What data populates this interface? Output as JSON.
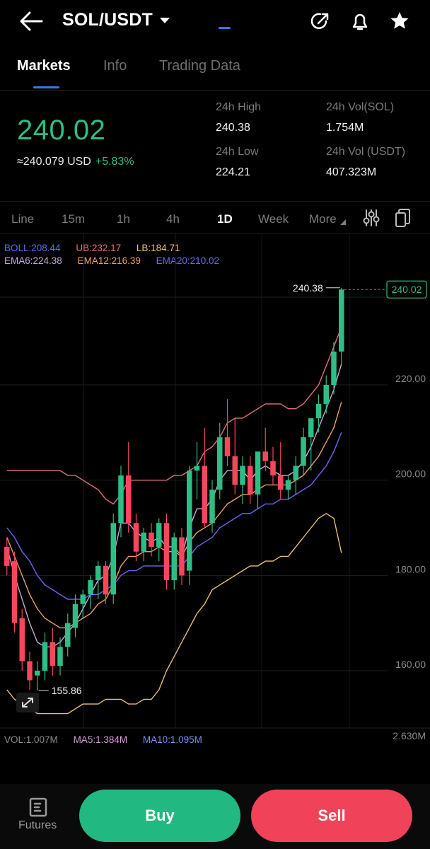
{
  "header": {
    "pair": "SOL/USDT",
    "icons": [
      "arrow-left-icon",
      "chevron-down-icon",
      "share-arrow-icon",
      "bell-icon",
      "star-icon"
    ]
  },
  "tabs": [
    {
      "label": "Markets",
      "active": true
    },
    {
      "label": "Info",
      "active": false
    },
    {
      "label": "Trading Data",
      "active": false
    }
  ],
  "ticker": {
    "last_price": "240.02",
    "usd_equiv": "≈240.079 USD",
    "change_pct": "+5.83%",
    "high_label": "24h High",
    "high_value": "240.38",
    "low_label": "24h Low",
    "low_value": "224.21",
    "vol_sol_label": "24h Vol(SOL)",
    "vol_sol_value": "1.754M",
    "vol_usdt_label": "24h Vol (USDT)",
    "vol_usdt_value": "407.323M"
  },
  "intervals": [
    {
      "label": "Line",
      "active": false
    },
    {
      "label": "15m",
      "active": false
    },
    {
      "label": "1h",
      "active": false
    },
    {
      "label": "4h",
      "active": false
    },
    {
      "label": "1D",
      "active": true
    },
    {
      "label": "Week",
      "active": false
    },
    {
      "label": "More",
      "active": false
    }
  ],
  "indicators": {
    "boll": "BOLL:208.44",
    "ub": "UB:232.17",
    "lb": "LB:184.71",
    "ema6": "EMA6:224.38",
    "ema12": "EMA12:216.39",
    "ema20": "EMA20:210.02"
  },
  "colors": {
    "up": "#2ebd85",
    "down": "#f6465d",
    "boll_mid": "#5b6ee8",
    "boll_upper": "#e0707a",
    "boll_lower": "#e6c070",
    "ema6": "#c9a6d9",
    "ema12": "#e8a060",
    "ema20": "#6c66ee"
  },
  "chart_data": {
    "type": "candlestick",
    "y_ticks": [
      "220.00",
      "200.00",
      "180.00",
      "160.00"
    ],
    "ylim": [
      152,
      250
    ],
    "high_marker": "240.38",
    "low_marker": "155.86",
    "last_price_tag": "240.02",
    "candles": [
      {
        "o": 186,
        "h": 188,
        "l": 180,
        "c": 182
      },
      {
        "o": 183,
        "h": 185,
        "l": 168,
        "c": 170
      },
      {
        "o": 171,
        "h": 173,
        "l": 160,
        "c": 162
      },
      {
        "o": 162,
        "h": 164,
        "l": 156,
        "c": 158
      },
      {
        "o": 159,
        "h": 162,
        "l": 155.86,
        "c": 160
      },
      {
        "o": 160,
        "h": 168,
        "l": 158,
        "c": 166
      },
      {
        "o": 166,
        "h": 169,
        "l": 159,
        "c": 161
      },
      {
        "o": 161,
        "h": 167,
        "l": 159,
        "c": 165
      },
      {
        "o": 165,
        "h": 172,
        "l": 163,
        "c": 170
      },
      {
        "o": 169,
        "h": 176,
        "l": 167,
        "c": 174
      },
      {
        "o": 174,
        "h": 177,
        "l": 171,
        "c": 176
      },
      {
        "o": 176,
        "h": 180,
        "l": 173,
        "c": 179
      },
      {
        "o": 179,
        "h": 183,
        "l": 175,
        "c": 182
      },
      {
        "o": 182,
        "h": 183,
        "l": 174,
        "c": 176
      },
      {
        "o": 176,
        "h": 193,
        "l": 174,
        "c": 191
      },
      {
        "o": 191,
        "h": 203,
        "l": 188,
        "c": 201
      },
      {
        "o": 201,
        "h": 208,
        "l": 189,
        "c": 191
      },
      {
        "o": 191,
        "h": 193,
        "l": 183,
        "c": 185
      },
      {
        "o": 185,
        "h": 190,
        "l": 183,
        "c": 189
      },
      {
        "o": 189,
        "h": 191,
        "l": 184,
        "c": 186
      },
      {
        "o": 186,
        "h": 192,
        "l": 183,
        "c": 191
      },
      {
        "o": 191,
        "h": 193,
        "l": 177,
        "c": 179
      },
      {
        "o": 179,
        "h": 189,
        "l": 177,
        "c": 188
      },
      {
        "o": 188,
        "h": 190,
        "l": 178,
        "c": 180
      },
      {
        "o": 181,
        "h": 203,
        "l": 178,
        "c": 202
      },
      {
        "o": 202,
        "h": 208,
        "l": 196,
        "c": 203
      },
      {
        "o": 203,
        "h": 211,
        "l": 190,
        "c": 191
      },
      {
        "o": 191,
        "h": 200,
        "l": 189,
        "c": 198
      },
      {
        "o": 198,
        "h": 212,
        "l": 196,
        "c": 209
      },
      {
        "o": 209,
        "h": 217,
        "l": 203,
        "c": 205
      },
      {
        "o": 205,
        "h": 213,
        "l": 197,
        "c": 199
      },
      {
        "o": 199,
        "h": 205,
        "l": 195,
        "c": 203
      },
      {
        "o": 203,
        "h": 205,
        "l": 195,
        "c": 197
      },
      {
        "o": 197,
        "h": 206,
        "l": 194,
        "c": 206
      },
      {
        "o": 206,
        "h": 211,
        "l": 202,
        "c": 204
      },
      {
        "o": 204,
        "h": 207,
        "l": 199,
        "c": 201
      },
      {
        "o": 201,
        "h": 208,
        "l": 196,
        "c": 198
      },
      {
        "o": 198,
        "h": 201,
        "l": 196,
        "c": 200
      },
      {
        "o": 200,
        "h": 205,
        "l": 197,
        "c": 203
      },
      {
        "o": 203,
        "h": 211,
        "l": 201,
        "c": 209
      },
      {
        "o": 209,
        "h": 213,
        "l": 202,
        "c": 213
      },
      {
        "o": 213,
        "h": 218,
        "l": 210,
        "c": 216
      },
      {
        "o": 216,
        "h": 222,
        "l": 214,
        "c": 220
      },
      {
        "o": 220,
        "h": 229,
        "l": 218,
        "c": 227
      },
      {
        "o": 227,
        "h": 240.38,
        "l": 224.21,
        "c": 240.02
      }
    ],
    "series": [
      {
        "name": "UB",
        "color": "#e0707a",
        "values": [
          202,
          202,
          202,
          202,
          202,
          202,
          202,
          202,
          201,
          201,
          200,
          199,
          198,
          196,
          195,
          197,
          200,
          200,
          200,
          200,
          200,
          200,
          201,
          201,
          202,
          203,
          206,
          207,
          209,
          212,
          213,
          213,
          214,
          215,
          216,
          216,
          216,
          215,
          215,
          216,
          218,
          220,
          224,
          228,
          232.17
        ]
      },
      {
        "name": "LB",
        "color": "#e6c070",
        "values": [
          156,
          154,
          153,
          152,
          151,
          151,
          151,
          151,
          151,
          152,
          153,
          153,
          153,
          154,
          154,
          154,
          153,
          153,
          154,
          154,
          156,
          160,
          163,
          166,
          169,
          172,
          174,
          177,
          178,
          179,
          180,
          181,
          182,
          182,
          183,
          183,
          184,
          184,
          186,
          188,
          190,
          192,
          193,
          192,
          184.71
        ]
      },
      {
        "name": "EMA6",
        "color": "#c9a6d9",
        "values": [
          186,
          180,
          175,
          170,
          166,
          165,
          165,
          166,
          168,
          170,
          173,
          176,
          179,
          180,
          184,
          191,
          191,
          189,
          188,
          187,
          188,
          186,
          186,
          184,
          190,
          194,
          194,
          196,
          200,
          202,
          202,
          202,
          200,
          202,
          203,
          202,
          201,
          201,
          202,
          204,
          207,
          211,
          215,
          219,
          224.38
        ]
      },
      {
        "name": "EMA12",
        "color": "#e8a060",
        "values": [
          188,
          184,
          180,
          176,
          173,
          171,
          170,
          169,
          169,
          170,
          171,
          172,
          174,
          175,
          178,
          182,
          184,
          184,
          185,
          185,
          186,
          185,
          185,
          184,
          187,
          189,
          190,
          191,
          193,
          195,
          196,
          197,
          197,
          198,
          199,
          199,
          199,
          199,
          200,
          201,
          203,
          205,
          208,
          211,
          216.39
        ]
      },
      {
        "name": "EMA20",
        "color": "#6c66ee",
        "values": [
          190,
          188,
          185,
          183,
          180,
          178,
          177,
          176,
          175,
          175,
          175,
          176,
          176,
          177,
          178,
          180,
          181,
          181,
          182,
          182,
          182,
          182,
          182,
          182,
          184,
          186,
          187,
          188,
          190,
          191,
          192,
          193,
          193,
          194,
          195,
          195,
          196,
          196,
          197,
          198,
          199,
          201,
          203,
          206,
          210.02
        ]
      }
    ]
  },
  "volume": {
    "vol": "VOL:1.007M",
    "ma5": "MA5:1.384M",
    "ma10": "MA10:1.095M",
    "max_label": "2.630M"
  },
  "bottom": {
    "futures_label": "Futures",
    "buy_label": "Buy",
    "sell_label": "Sell"
  }
}
